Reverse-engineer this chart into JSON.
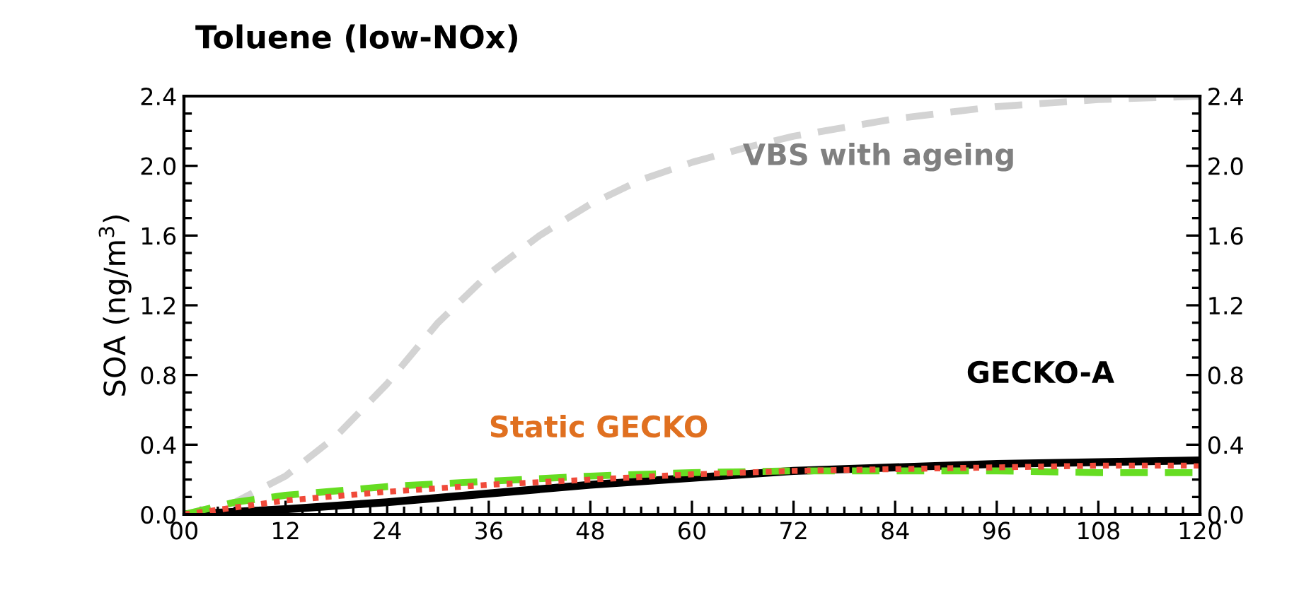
{
  "chart_data": {
    "type": "line",
    "title": "Toluene (low-NOx)",
    "ylabel": "SOA (ng/m$^{3}$)",
    "xlim": [
      0,
      120
    ],
    "xticks": [
      {
        "value": 0,
        "label": "00"
      },
      12,
      24,
      36,
      48,
      60,
      72,
      84,
      96,
      108,
      120
    ],
    "ylim": [
      0,
      2.4
    ],
    "yticks": [
      {
        "value": 0,
        "label": "0.0"
      },
      {
        "value": 0.4,
        "label": "0.4"
      },
      {
        "value": 0.8,
        "label": "0.8"
      },
      {
        "value": 1.2,
        "label": "1.2"
      },
      {
        "value": 1.6,
        "label": "1.6"
      },
      {
        "value": 2.0,
        "label": "2.0"
      },
      {
        "value": 2.4,
        "label": "2.4"
      }
    ],
    "y2lim": [
      0,
      2.4
    ],
    "y2ticks": [
      {
        "value": 0,
        "label": "0.0"
      },
      {
        "value": 0.4,
        "label": "0.4"
      },
      {
        "value": 0.8,
        "label": "0.8"
      },
      {
        "value": 1.2,
        "label": "1.2"
      },
      {
        "value": 1.6,
        "label": "1.6"
      },
      {
        "value": 2.0,
        "label": "2.0"
      },
      {
        "value": 2.4,
        "label": "2.4"
      }
    ],
    "grid": false,
    "legend": false,
    "series": [
      {
        "name": "VBS with ageing",
        "color": "#d3d3d3",
        "line_style": "dashed",
        "x": [
          0,
          6,
          12,
          18,
          24,
          30,
          36,
          42,
          48,
          54,
          60,
          66,
          72,
          84,
          96,
          108,
          120
        ],
        "values": [
          0,
          0.07,
          0.22,
          0.45,
          0.75,
          1.1,
          1.38,
          1.6,
          1.78,
          1.92,
          2.02,
          2.1,
          2.17,
          2.27,
          2.34,
          2.38,
          2.4
        ]
      },
      {
        "name": "GECKO-A",
        "color": "#000000",
        "line_style": "solid",
        "x": [
          0,
          12,
          24,
          36,
          48,
          60,
          72,
          84,
          96,
          108,
          120
        ],
        "values": [
          0,
          0.03,
          0.07,
          0.12,
          0.17,
          0.21,
          0.25,
          0.27,
          0.29,
          0.3,
          0.31
        ]
      },
      {
        "color": "#66dd22",
        "line_style": "dashed",
        "x": [
          0,
          6,
          12,
          24,
          36,
          48,
          60,
          72,
          84,
          96,
          108,
          120
        ],
        "values": [
          0,
          0.07,
          0.11,
          0.16,
          0.19,
          0.22,
          0.24,
          0.25,
          0.25,
          0.25,
          0.24,
          0.24
        ]
      },
      {
        "name": "Static GECKO",
        "color": "#f04a3a",
        "line_style": "dotted",
        "x": [
          0,
          6,
          12,
          24,
          36,
          48,
          60,
          72,
          84,
          96,
          108,
          120
        ],
        "values": [
          0,
          0.04,
          0.08,
          0.13,
          0.17,
          0.2,
          0.23,
          0.25,
          0.26,
          0.27,
          0.28,
          0.28
        ]
      }
    ]
  }
}
